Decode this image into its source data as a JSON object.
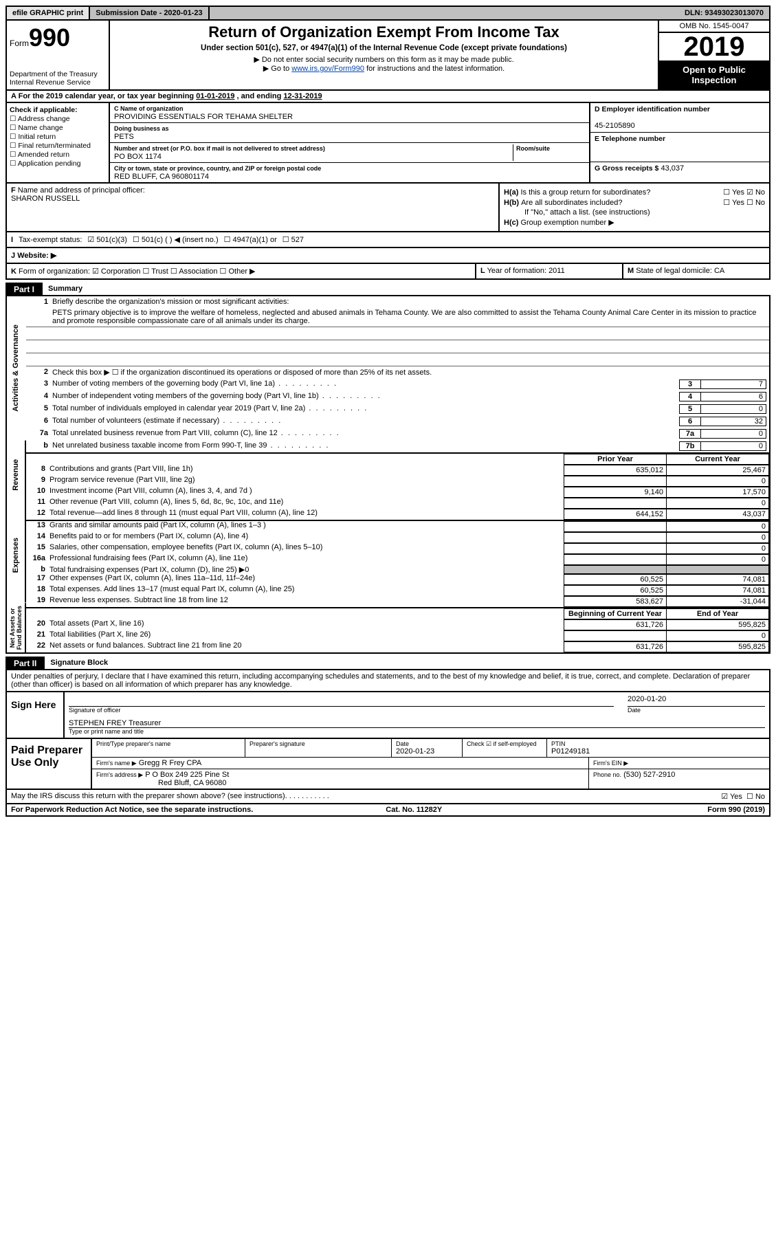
{
  "topbar": {
    "efile": "efile GRAPHIC print",
    "submission": "Submission Date - 2020-01-23",
    "dln": "DLN: 93493023013070"
  },
  "header": {
    "form_prefix": "Form",
    "form_number": "990",
    "dept": "Department of the Treasury\nInternal Revenue Service",
    "title": "Return of Organization Exempt From Income Tax",
    "subtitle": "Under section 501(c), 527, or 4947(a)(1) of the Internal Revenue Code (except private foundations)",
    "note1": "Do not enter social security numbers on this form as it may be made public.",
    "note2_pre": "Go to ",
    "note2_link": "www.irs.gov/Form990",
    "note2_post": " for instructions and the latest information.",
    "omb": "OMB No. 1545-0047",
    "year": "2019",
    "open": "Open to Public Inspection"
  },
  "A": {
    "text": "For the 2019 calendar year, or tax year beginning ",
    "begin": "01-01-2019",
    "mid": " , and ending ",
    "end": "12-31-2019"
  },
  "B": {
    "label": "Check if applicable:",
    "opts": [
      "Address change",
      "Name change",
      "Initial return",
      "Final return/terminated",
      "Amended return",
      "Application pending"
    ]
  },
  "C": {
    "name_label": "Name of organization",
    "name": "PROVIDING ESSENTIALS FOR TEHAMA SHELTER",
    "dba_label": "Doing business as",
    "dba": "PETS",
    "street_label": "Number and street (or P.O. box if mail is not delivered to street address)",
    "room_label": "Room/suite",
    "street": "PO BOX 1174",
    "city_label": "City or town, state or province, country, and ZIP or foreign postal code",
    "city": "RED BLUFF, CA  960801174"
  },
  "D": {
    "label": "Employer identification number",
    "value": "45-2105890"
  },
  "E": {
    "label": "Telephone number",
    "value": ""
  },
  "G": {
    "label": "Gross receipts $",
    "value": "43,037"
  },
  "F": {
    "label": "Name and address of principal officer:",
    "value": "SHARON RUSSELL"
  },
  "H": {
    "a": "Is this a group return for subordinates?",
    "a_yes": false,
    "a_no": true,
    "b": "Are all subordinates included?",
    "b_yes": false,
    "b_no": false,
    "b_note": "If \"No,\" attach a list. (see instructions)",
    "c": "Group exemption number ▶"
  },
  "I": {
    "label": "Tax-exempt status:",
    "o1": "501(c)(3)",
    "o1_checked": true,
    "o2": "501(c) (   ) ◀ (insert no.)",
    "o3": "4947(a)(1) or",
    "o4": "527"
  },
  "J": {
    "label": "Website: ▶",
    "value": ""
  },
  "K": {
    "label": "Form of organization:",
    "corp": true,
    "trust": false,
    "assoc": false,
    "other": false,
    "corp_l": "Corporation",
    "trust_l": "Trust",
    "assoc_l": "Association",
    "other_l": "Other ▶"
  },
  "L": {
    "label": "Year of formation:",
    "value": "2011"
  },
  "M": {
    "label": "State of legal domicile:",
    "value": "CA"
  },
  "part1": {
    "tag": "Part I",
    "title": "Summary"
  },
  "mission": {
    "q1": "Briefly describe the organization's mission or most significant activities:",
    "text": "PETS primary objective is to improve the welfare of homeless, neglected and abused animals in Tehama County. We are also committed to assist the Tehama County Animal Care Center in its mission to practice and promote responsible compassionate care of all animals under its charge."
  },
  "gov": {
    "q2": "Check this box ▶ ☐  if the organization discontinued its operations or disposed of more than 25% of its net assets.",
    "rows": [
      {
        "n": "3",
        "t": "Number of voting members of the governing body (Part VI, line 1a)",
        "box": "3",
        "v": "7"
      },
      {
        "n": "4",
        "t": "Number of independent voting members of the governing body (Part VI, line 1b)",
        "box": "4",
        "v": "6"
      },
      {
        "n": "5",
        "t": "Total number of individuals employed in calendar year 2019 (Part V, line 2a)",
        "box": "5",
        "v": "0"
      },
      {
        "n": "6",
        "t": "Total number of volunteers (estimate if necessary)",
        "box": "6",
        "v": "32"
      },
      {
        "n": "7a",
        "t": "Total unrelated business revenue from Part VIII, column (C), line 12",
        "box": "7a",
        "v": "0"
      },
      {
        "n": "b",
        "t": "Net unrelated business taxable income from Form 990-T, line 39",
        "box": "7b",
        "v": "0"
      }
    ]
  },
  "rev": {
    "hdr1": "Prior Year",
    "hdr2": "Current Year",
    "rows": [
      {
        "n": "8",
        "t": "Contributions and grants (Part VIII, line 1h)",
        "c1": "635,012",
        "c2": "25,467"
      },
      {
        "n": "9",
        "t": "Program service revenue (Part VIII, line 2g)",
        "c1": "",
        "c2": "0"
      },
      {
        "n": "10",
        "t": "Investment income (Part VIII, column (A), lines 3, 4, and 7d )",
        "c1": "9,140",
        "c2": "17,570"
      },
      {
        "n": "11",
        "t": "Other revenue (Part VIII, column (A), lines 5, 6d, 8c, 9c, 10c, and 11e)",
        "c1": "",
        "c2": "0"
      },
      {
        "n": "12",
        "t": "Total revenue—add lines 8 through 11 (must equal Part VIII, column (A), line 12)",
        "c1": "644,152",
        "c2": "43,037"
      }
    ]
  },
  "exp": {
    "rows": [
      {
        "n": "13",
        "t": "Grants and similar amounts paid (Part IX, column (A), lines 1–3 )",
        "c1": "",
        "c2": "0"
      },
      {
        "n": "14",
        "t": "Benefits paid to or for members (Part IX, column (A), line 4)",
        "c1": "",
        "c2": "0"
      },
      {
        "n": "15",
        "t": "Salaries, other compensation, employee benefits (Part IX, column (A), lines 5–10)",
        "c1": "",
        "c2": "0"
      },
      {
        "n": "16a",
        "t": "Professional fundraising fees (Part IX, column (A), line 11e)",
        "c1": "",
        "c2": "0"
      },
      {
        "n": "b",
        "t": "Total fundraising expenses (Part IX, column (D), line 25) ▶0",
        "c1": "grey",
        "c2": "grey"
      },
      {
        "n": "17",
        "t": "Other expenses (Part IX, column (A), lines 11a–11d, 11f–24e)",
        "c1": "60,525",
        "c2": "74,081"
      },
      {
        "n": "18",
        "t": "Total expenses. Add lines 13–17 (must equal Part IX, column (A), line 25)",
        "c1": "60,525",
        "c2": "74,081"
      },
      {
        "n": "19",
        "t": "Revenue less expenses. Subtract line 18 from line 12",
        "c1": "583,627",
        "c2": "-31,044"
      }
    ]
  },
  "net": {
    "hdr1": "Beginning of Current Year",
    "hdr2": "End of Year",
    "rows": [
      {
        "n": "20",
        "t": "Total assets (Part X, line 16)",
        "c1": "631,726",
        "c2": "595,825"
      },
      {
        "n": "21",
        "t": "Total liabilities (Part X, line 26)",
        "c1": "",
        "c2": "0"
      },
      {
        "n": "22",
        "t": "Net assets or fund balances. Subtract line 21 from line 20",
        "c1": "631,726",
        "c2": "595,825"
      }
    ]
  },
  "vtabs": {
    "gov": "Activities & Governance",
    "rev": "Revenue",
    "exp": "Expenses",
    "net": "Net Assets or\nFund Balances"
  },
  "part2": {
    "tag": "Part II",
    "title": "Signature Block",
    "decl": "Under penalties of perjury, I declare that I have examined this return, including accompanying schedules and statements, and to the best of my knowledge and belief, it is true, correct, and complete. Declaration of preparer (other than officer) is based on all information of which preparer has any knowledge."
  },
  "sign": {
    "here": "Sign Here",
    "sig_lbl": "Signature of officer",
    "date_lbl": "Date",
    "date": "2020-01-20",
    "name": "STEPHEN FREY Treasurer",
    "name_lbl": "Type or print name and title"
  },
  "prep": {
    "title": "Paid Preparer Use Only",
    "h1": "Print/Type preparer's name",
    "h2": "Preparer's signature",
    "h3": "Date",
    "h3v": "2020-01-23",
    "h4": "Check ☑ if self-employed",
    "h5": "PTIN",
    "h5v": "P01249181",
    "firm_l": "Firm's name   ▶",
    "firm": "Gregg R Frey CPA",
    "ein_l": "Firm's EIN ▶",
    "addr_l": "Firm's address ▶",
    "addr": "P O Box 249 225 Pine St",
    "addr2": "Red Bluff, CA  96080",
    "phone_l": "Phone no.",
    "phone": "(530) 527-2910"
  },
  "discuss": {
    "q": "May the IRS discuss this return with the preparer shown above? (see instructions)",
    "yes": true,
    "no": false
  },
  "footer": {
    "l": "For Paperwork Reduction Act Notice, see the separate instructions.",
    "m": "Cat. No. 11282Y",
    "r": "Form 990 (2019)"
  }
}
